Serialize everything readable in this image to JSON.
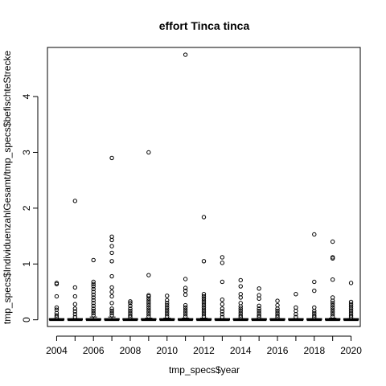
{
  "chart_data": {
    "type": "boxplot",
    "title": "effort Tinca tinca",
    "xlabel": "tmp_specs$year",
    "ylabel": "tmp_specs$IndividuenzahlGesamt/tmp_specs$befischteStrecke",
    "categories": [
      "2004",
      "2005",
      "2006",
      "2007",
      "2008",
      "2009",
      "2010",
      "2011",
      "2012",
      "2013",
      "2014",
      "2015",
      "2016",
      "2017",
      "2018",
      "2019",
      "2020"
    ],
    "x_tick_labels": [
      "2004",
      "2006",
      "2008",
      "2010",
      "2012",
      "2014",
      "2016",
      "2018",
      "2020"
    ],
    "y_ticks": [
      0,
      1,
      2,
      3,
      4
    ],
    "ylim": [
      -0.12,
      4.88
    ],
    "grid": false,
    "boxes": [
      {
        "year": "2004",
        "median": 0,
        "q1": 0,
        "q3": 0,
        "whisker_low": 0,
        "whisker_high": 0.02,
        "outliers": [
          0.05,
          0.08,
          0.12,
          0.18,
          0.22,
          0.42,
          0.64,
          0.66
        ]
      },
      {
        "year": "2005",
        "median": 0,
        "q1": 0,
        "q3": 0,
        "whisker_low": 0,
        "whisker_high": 0.02,
        "outliers": [
          0.05,
          0.1,
          0.15,
          0.2,
          0.28,
          0.42,
          0.58,
          2.13
        ]
      },
      {
        "year": "2006",
        "median": 0,
        "q1": 0,
        "q3": 0.02,
        "whisker_low": 0,
        "whisker_high": 0.05,
        "outliers": [
          0.08,
          0.12,
          0.16,
          0.2,
          0.25,
          0.3,
          0.35,
          0.4,
          0.45,
          0.5,
          0.55,
          0.6,
          0.64,
          0.68,
          1.07
        ]
      },
      {
        "year": "2007",
        "median": 0,
        "q1": 0,
        "q3": 0.02,
        "whisker_low": 0,
        "whisker_high": 0.05,
        "outliers": [
          0.08,
          0.12,
          0.16,
          0.2,
          0.3,
          0.42,
          0.5,
          0.58,
          0.78,
          1.05,
          1.2,
          1.32,
          1.43,
          1.49,
          2.9
        ]
      },
      {
        "year": "2008",
        "median": 0,
        "q1": 0,
        "q3": 0,
        "whisker_low": 0,
        "whisker_high": 0.02,
        "outliers": [
          0.05,
          0.08,
          0.12,
          0.16,
          0.2,
          0.25,
          0.3,
          0.33
        ]
      },
      {
        "year": "2009",
        "median": 0,
        "q1": 0,
        "q3": 0.01,
        "whisker_low": 0,
        "whisker_high": 0.03,
        "outliers": [
          0.06,
          0.1,
          0.14,
          0.18,
          0.22,
          0.26,
          0.3,
          0.34,
          0.38,
          0.42,
          0.44,
          0.8,
          3.0
        ]
      },
      {
        "year": "2010",
        "median": 0,
        "q1": 0,
        "q3": 0.01,
        "whisker_low": 0,
        "whisker_high": 0.03,
        "outliers": [
          0.06,
          0.1,
          0.14,
          0.18,
          0.22,
          0.26,
          0.3,
          0.35,
          0.43
        ]
      },
      {
        "year": "2011",
        "median": 0,
        "q1": 0,
        "q3": 0.01,
        "whisker_low": 0,
        "whisker_high": 0.03,
        "outliers": [
          0.06,
          0.1,
          0.14,
          0.18,
          0.22,
          0.26,
          0.45,
          0.52,
          0.57,
          0.73,
          4.75
        ]
      },
      {
        "year": "2012",
        "median": 0,
        "q1": 0,
        "q3": 0.01,
        "whisker_low": 0,
        "whisker_high": 0.03,
        "outliers": [
          0.06,
          0.1,
          0.14,
          0.18,
          0.22,
          0.26,
          0.3,
          0.34,
          0.38,
          0.42,
          0.46,
          1.05,
          1.84
        ]
      },
      {
        "year": "2013",
        "median": 0,
        "q1": 0,
        "q3": 0,
        "whisker_low": 0,
        "whisker_high": 0.02,
        "outliers": [
          0.05,
          0.1,
          0.15,
          0.2,
          0.28,
          0.36,
          0.68,
          1.02,
          1.12
        ]
      },
      {
        "year": "2014",
        "median": 0,
        "q1": 0,
        "q3": 0,
        "whisker_low": 0,
        "whisker_high": 0.02,
        "outliers": [
          0.05,
          0.08,
          0.12,
          0.16,
          0.2,
          0.24,
          0.3,
          0.4,
          0.46,
          0.6,
          0.71
        ]
      },
      {
        "year": "2015",
        "median": 0,
        "q1": 0,
        "q3": 0,
        "whisker_low": 0,
        "whisker_high": 0.02,
        "outliers": [
          0.05,
          0.08,
          0.12,
          0.16,
          0.2,
          0.25,
          0.38,
          0.44,
          0.56
        ]
      },
      {
        "year": "2016",
        "median": 0,
        "q1": 0,
        "q3": 0,
        "whisker_low": 0,
        "whisker_high": 0.02,
        "outliers": [
          0.05,
          0.08,
          0.12,
          0.16,
          0.2,
          0.26,
          0.34
        ]
      },
      {
        "year": "2017",
        "median": 0,
        "q1": 0,
        "q3": 0,
        "whisker_low": 0,
        "whisker_high": 0.02,
        "outliers": [
          0.05,
          0.1,
          0.16,
          0.22,
          0.46
        ]
      },
      {
        "year": "2018",
        "median": 0,
        "q1": 0,
        "q3": 0,
        "whisker_low": 0,
        "whisker_high": 0.02,
        "outliers": [
          0.05,
          0.08,
          0.12,
          0.16,
          0.22,
          0.52,
          0.68,
          1.53
        ]
      },
      {
        "year": "2019",
        "median": 0,
        "q1": 0,
        "q3": 0.01,
        "whisker_low": 0,
        "whisker_high": 0.03,
        "outliers": [
          0.06,
          0.1,
          0.14,
          0.18,
          0.22,
          0.26,
          0.3,
          0.34,
          0.4,
          0.72,
          1.1,
          1.12,
          1.4
        ]
      },
      {
        "year": "2020",
        "median": 0,
        "q1": 0,
        "q3": 0,
        "whisker_low": 0,
        "whisker_high": 0.02,
        "outliers": [
          0.05,
          0.08,
          0.12,
          0.16,
          0.2,
          0.24,
          0.28,
          0.32,
          0.66
        ]
      }
    ]
  }
}
